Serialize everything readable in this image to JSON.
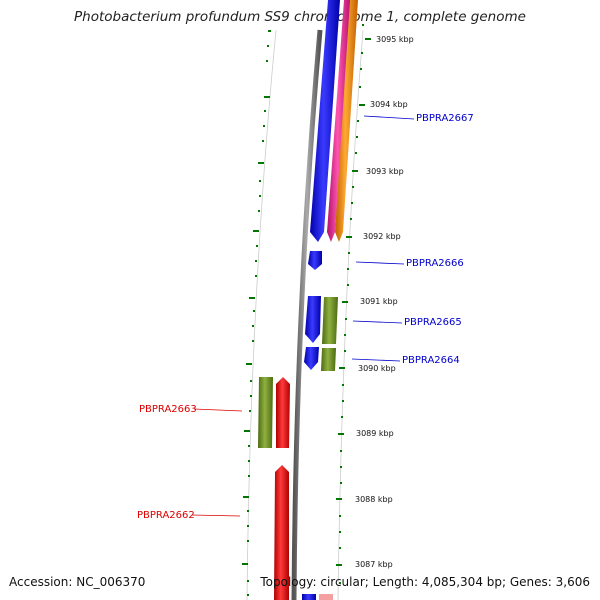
{
  "title": "Photobacterium profundum SS9 chromosome 1, complete genome",
  "footer": {
    "accession": "Accession: NC_006370",
    "topology": "Topology: circular; Length: 4,085,304 bp; Genes: 3,606"
  },
  "ticks": [
    "3095 kbp",
    "3094 kbp",
    "3093 kbp",
    "3092 kbp",
    "3091 kbp",
    "3090 kbp",
    "3089 kbp",
    "3088 kbp",
    "3087 kbp"
  ],
  "genes_forward": [
    {
      "name": "PBPRA2667"
    },
    {
      "name": "PBPRA2666"
    },
    {
      "name": "PBPRA2665"
    },
    {
      "name": "PBPRA2664"
    }
  ],
  "genes_reverse": [
    {
      "name": "PBPRA2663"
    },
    {
      "name": "PBPRA2662"
    }
  ],
  "colors": {
    "forward_label": "#0000cc",
    "reverse_label": "#dd0000",
    "blue": "#0000ee",
    "red": "#ee0000",
    "green": "#6b8e23",
    "pink": "#ee3399",
    "orange": "#ff8c00",
    "backbone": "#808080",
    "tick": "#007700"
  }
}
